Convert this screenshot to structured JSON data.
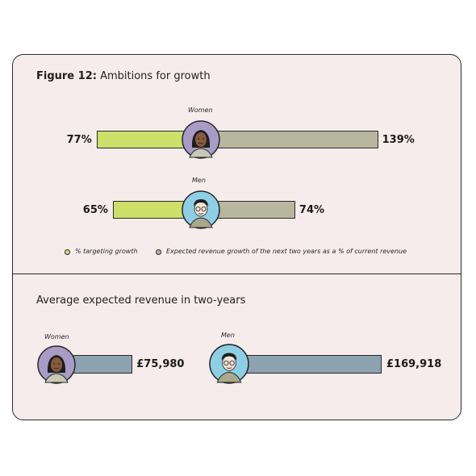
{
  "colors": {
    "targeting": "#cde06a",
    "growth": "#b7b7a0",
    "revenue": "#8ea3b2",
    "women_bg": "#a89cc6",
    "men_bg": "#8fcfe6",
    "card_bg": "#f6ecec"
  },
  "figure": {
    "label": "Figure 12:",
    "title": "Ambitions for growth"
  },
  "section2": {
    "title": "Average expected revenue in two-years"
  },
  "legend": {
    "targeting": "% targeting growth",
    "growth": "Expected revenue growth of the next two years as a % of current revenue"
  },
  "chart_data": [
    {
      "type": "bar",
      "title": "Figure 12: Ambitions for growth",
      "categories": [
        "Women",
        "Men"
      ],
      "series": [
        {
          "name": "% targeting growth",
          "values": [
            77,
            65
          ],
          "labels": [
            "77%",
            "65%"
          ]
        },
        {
          "name": "Expected revenue growth of the next two years as a % of current revenue",
          "values": [
            139,
            74
          ],
          "labels": [
            "139%",
            "74%"
          ]
        }
      ]
    },
    {
      "type": "bar",
      "title": "Average expected revenue in two-years",
      "categories": [
        "Women",
        "Men"
      ],
      "values": [
        75980,
        169918
      ],
      "labels": [
        "£75,980",
        "£169,918"
      ]
    }
  ]
}
